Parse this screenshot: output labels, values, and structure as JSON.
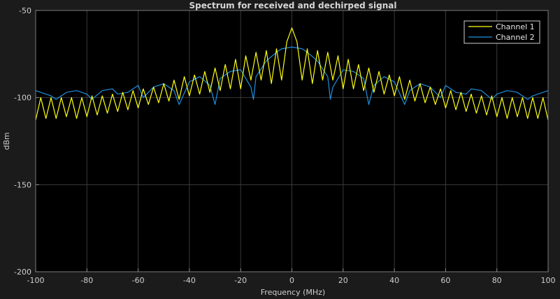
{
  "chart_data": {
    "type": "line",
    "title": "Spectrum for received and dechirped signal",
    "xlabel": "Frequency (MHz)",
    "ylabel": "dBm",
    "xlim": [
      -100,
      100
    ],
    "ylim": [
      -200,
      -50
    ],
    "xticks": [
      -100,
      -80,
      -60,
      -40,
      -20,
      0,
      20,
      40,
      60,
      80,
      100
    ],
    "yticks": [
      -200,
      -150,
      -100,
      -50
    ],
    "grid": true,
    "legend_position": "top-right",
    "background": "#000000",
    "series": [
      {
        "name": "Channel 1",
        "color": "#ffff11",
        "x": [
          -100,
          -98,
          -96,
          -94,
          -92,
          -90,
          -88,
          -86,
          -84,
          -82,
          -80,
          -78,
          -76,
          -74,
          -72,
          -70,
          -68,
          -66,
          -64,
          -62,
          -60,
          -58,
          -56,
          -54,
          -52,
          -50,
          -48,
          -46,
          -44,
          -42,
          -40,
          -38,
          -36,
          -34,
          -32,
          -30,
          -28,
          -26,
          -24,
          -22,
          -20,
          -18,
          -16,
          -14,
          -12,
          -10,
          -8,
          -6,
          -4,
          -2,
          0,
          2,
          4,
          6,
          8,
          10,
          12,
          14,
          16,
          18,
          20,
          22,
          24,
          26,
          28,
          30,
          32,
          34,
          36,
          38,
          40,
          42,
          44,
          46,
          48,
          50,
          52,
          54,
          56,
          58,
          60,
          62,
          64,
          66,
          68,
          70,
          72,
          74,
          76,
          78,
          80,
          82,
          84,
          86,
          88,
          90,
          92,
          94,
          96,
          98,
          100
        ],
        "y": [
          -113,
          -100,
          -112,
          -100,
          -112,
          -100,
          -111,
          -100,
          -112,
          -100,
          -111,
          -99,
          -110,
          -99,
          -109,
          -98,
          -108,
          -97,
          -107,
          -96,
          -106,
          -95,
          -104,
          -94,
          -103,
          -92,
          -102,
          -90,
          -101,
          -88,
          -99,
          -87,
          -98,
          -85,
          -97,
          -83,
          -96,
          -81,
          -95,
          -78,
          -95,
          -76,
          -90,
          -74,
          -90,
          -73,
          -92,
          -72,
          -90,
          -68,
          -60,
          -68,
          -90,
          -72,
          -92,
          -73,
          -90,
          -74,
          -90,
          -76,
          -95,
          -78,
          -95,
          -81,
          -96,
          -83,
          -97,
          -85,
          -98,
          -87,
          -99,
          -88,
          -101,
          -90,
          -102,
          -92,
          -103,
          -94,
          -104,
          -95,
          -106,
          -96,
          -107,
          -97,
          -108,
          -98,
          -109,
          -99,
          -110,
          -99,
          -111,
          -100,
          -112,
          -100,
          -111,
          -100,
          -112,
          -100,
          -112,
          -100,
          -113
        ]
      },
      {
        "name": "Channel 2",
        "color": "#1f8fe0",
        "x": [
          -100,
          -94,
          -92,
          -88,
          -84,
          -80,
          -78,
          -74,
          -70,
          -68,
          -64,
          -60,
          -58,
          -54,
          -50,
          -46,
          -44,
          -40,
          -36,
          -32,
          -30,
          -28,
          -24,
          -20,
          -16,
          -15,
          -14,
          -10,
          -6,
          -4,
          0,
          4,
          6,
          10,
          14,
          15,
          16,
          20,
          24,
          28,
          30,
          32,
          36,
          40,
          44,
          46,
          50,
          54,
          58,
          60,
          64,
          68,
          70,
          74,
          78,
          80,
          84,
          88,
          92,
          94,
          100
        ],
        "y": [
          -96,
          -99,
          -101,
          -97,
          -96,
          -98,
          -101,
          -96,
          -95,
          -98,
          -97,
          -93,
          -100,
          -94,
          -92,
          -96,
          -104,
          -91,
          -88,
          -93,
          -104,
          -89,
          -85,
          -84,
          -94,
          -101,
          -88,
          -79,
          -74,
          -72,
          -71,
          -72,
          -74,
          -79,
          -88,
          -101,
          -94,
          -84,
          -85,
          -89,
          -104,
          -93,
          -88,
          -91,
          -104,
          -96,
          -92,
          -94,
          -100,
          -93,
          -97,
          -98,
          -95,
          -96,
          -101,
          -98,
          -96,
          -97,
          -101,
          -99,
          -96
        ]
      }
    ]
  }
}
